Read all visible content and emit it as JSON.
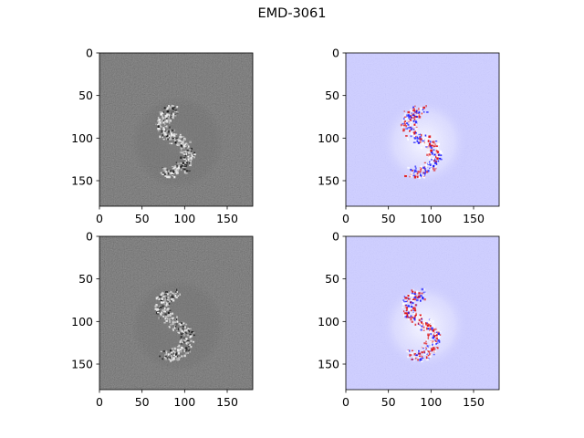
{
  "figure": {
    "title": "EMD-3061"
  },
  "colors": {
    "gray_background": "#4f4f4f",
    "seismic_background": "#c4c4ff",
    "seismic_positive": "#e01010",
    "seismic_negative": "#1a1aff",
    "axis": "#000000"
  },
  "chart_data": [
    {
      "type": "heatmap",
      "panel": "top-left",
      "colormap": "gray",
      "xlim": [
        0,
        180
      ],
      "ylim": [
        180,
        0
      ],
      "xticks": [
        0,
        50,
        100,
        150
      ],
      "yticks": [
        0,
        50,
        100,
        150
      ],
      "xtick_labels": [
        "0",
        "50",
        "100",
        "150"
      ],
      "ytick_labels": [
        "0",
        "50",
        "100",
        "150"
      ],
      "title": "",
      "xlabel": "",
      "ylabel": ""
    },
    {
      "type": "heatmap",
      "panel": "top-right",
      "colormap": "seismic",
      "xlim": [
        0,
        180
      ],
      "ylim": [
        180,
        0
      ],
      "xticks": [
        0,
        50,
        100,
        150
      ],
      "yticks": [
        0,
        50,
        100,
        150
      ],
      "xtick_labels": [
        "0",
        "50",
        "100",
        "150"
      ],
      "ytick_labels": [
        "0",
        "50",
        "100",
        "150"
      ],
      "title": "",
      "xlabel": "",
      "ylabel": ""
    },
    {
      "type": "heatmap",
      "panel": "bottom-left",
      "colormap": "gray",
      "xlim": [
        0,
        180
      ],
      "ylim": [
        180,
        0
      ],
      "xticks": [
        0,
        50,
        100,
        150
      ],
      "yticks": [
        0,
        50,
        100,
        150
      ],
      "xtick_labels": [
        "0",
        "50",
        "100",
        "150"
      ],
      "ytick_labels": [
        "0",
        "50",
        "100",
        "150"
      ],
      "title": "",
      "xlabel": "",
      "ylabel": ""
    },
    {
      "type": "heatmap",
      "panel": "bottom-right",
      "colormap": "seismic",
      "xlim": [
        0,
        180
      ],
      "ylim": [
        180,
        0
      ],
      "xticks": [
        0,
        50,
        100,
        150
      ],
      "yticks": [
        0,
        50,
        100,
        150
      ],
      "xtick_labels": [
        "0",
        "50",
        "100",
        "150"
      ],
      "ytick_labels": [
        "0",
        "50",
        "100",
        "150"
      ],
      "title": "",
      "xlabel": "",
      "ylabel": ""
    }
  ]
}
